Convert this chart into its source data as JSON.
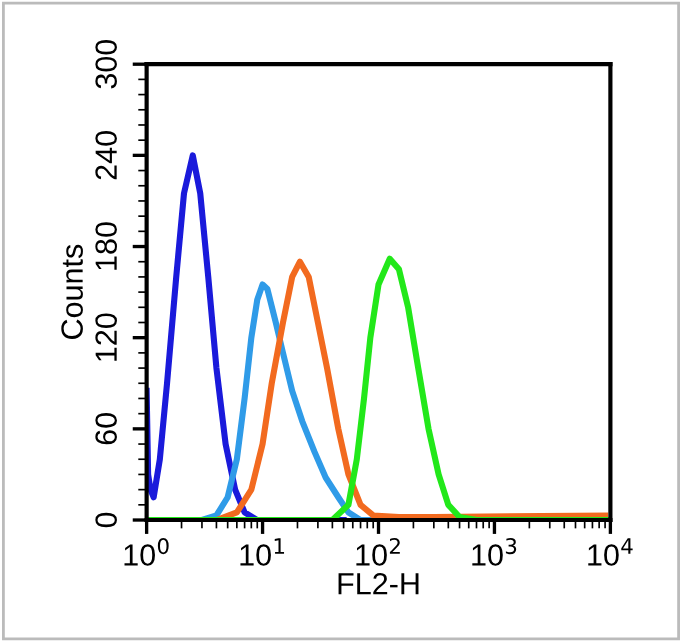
{
  "chart_data": {
    "type": "line",
    "xlabel": "FL2-H",
    "ylabel": "Counts",
    "log": "x",
    "xlim": [
      1,
      10000
    ],
    "ylim": [
      0,
      300
    ],
    "xticks": [
      {
        "value": 1,
        "label": "10$^{0}$"
      },
      {
        "value": 10,
        "label": "10$^{1}$"
      },
      {
        "value": 100,
        "label": "10$^{2}$"
      },
      {
        "value": 1000,
        "label": "10$^{3}$"
      },
      {
        "value": 10000,
        "label": "10$^{4}$"
      }
    ],
    "yticks": [
      0,
      60,
      120,
      180,
      240,
      300
    ],
    "grid": false,
    "legend": false,
    "marker": "none",
    "line_style": "solid",
    "series": [
      {
        "color": "#1a1adb",
        "x": [
          1.0,
          1.03,
          1.08,
          1.15,
          1.3,
          1.5,
          1.8,
          2.1,
          2.5,
          2.9,
          3.4,
          4,
          4.8,
          5.8,
          7,
          9,
          20,
          50
        ],
        "values": [
          85,
          30,
          20,
          15,
          40,
          90,
          160,
          215,
          240,
          215,
          160,
          100,
          50,
          20,
          5,
          0,
          0,
          0
        ]
      },
      {
        "color": "#2f9be8",
        "x": [
          3,
          4,
          5,
          6,
          7,
          8,
          9,
          10,
          11,
          13,
          15,
          18,
          22,
          28,
          35,
          45,
          55,
          70,
          100
        ],
        "values": [
          0,
          3,
          15,
          40,
          80,
          120,
          145,
          155,
          152,
          130,
          110,
          85,
          65,
          45,
          28,
          15,
          5,
          0,
          0
        ]
      },
      {
        "color": "#f26a1f",
        "x": [
          4,
          6,
          8,
          10,
          12,
          15,
          18,
          21,
          25,
          30,
          36,
          45,
          55,
          70,
          90,
          150,
          300,
          9000
        ],
        "values": [
          0,
          5,
          20,
          50,
          90,
          130,
          160,
          170,
          160,
          130,
          100,
          60,
          30,
          10,
          3,
          2,
          2,
          3
        ]
      },
      {
        "color": "#22e81a",
        "x": [
          1,
          40,
          55,
          65,
          75,
          85,
          100,
          125,
          150,
          180,
          220,
          270,
          330,
          400,
          500,
          700,
          10000
        ],
        "values": [
          0,
          0,
          10,
          40,
          80,
          120,
          155,
          172,
          165,
          140,
          100,
          60,
          30,
          10,
          2,
          0,
          0
        ]
      }
    ]
  }
}
